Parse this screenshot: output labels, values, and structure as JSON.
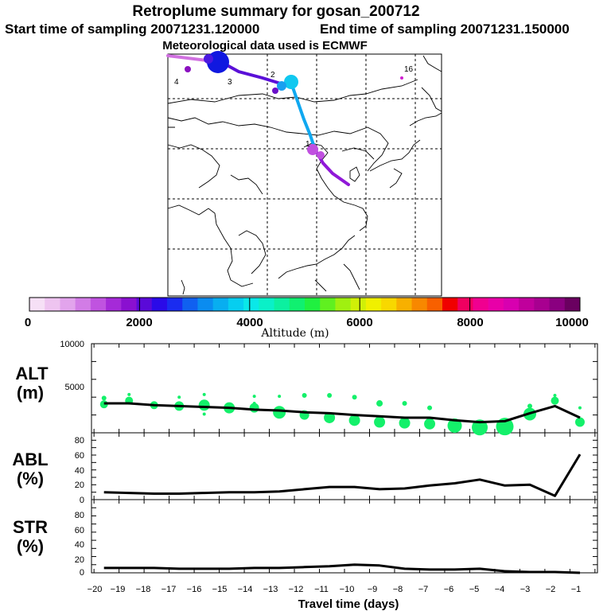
{
  "header": {
    "title": "Retroplume summary for gosan_200712",
    "start_time": "Start time of sampling 20071231.120000",
    "end_time": "End time of sampling 20071231.150000",
    "met_data": "Meteorological data used is ECMWF"
  },
  "map": {
    "day_labels": [
      {
        "id": "d4",
        "text": "4"
      },
      {
        "id": "d3",
        "text": "3"
      },
      {
        "id": "d2",
        "text": "2"
      },
      {
        "id": "d1",
        "text": "1"
      },
      {
        "id": "d16",
        "text": "16"
      }
    ]
  },
  "colorbar": {
    "tick_labels": [
      "0",
      "2000",
      "4000",
      "6000",
      "8000",
      "10000"
    ],
    "title": "Altitude (m)",
    "colors": [
      "#f6e0f6",
      "#eec4f0",
      "#e2a4ec",
      "#d27ce6",
      "#c053e0",
      "#a52ad8",
      "#8a10d0",
      "#5a0ad8",
      "#2a0ae8",
      "#1a2cf0",
      "#1060f0",
      "#0a8cf0",
      "#08aef0",
      "#06cef0",
      "#0ae8e8",
      "#0af0c8",
      "#0cf0a0",
      "#10f070",
      "#20f040",
      "#60f020",
      "#a0f010",
      "#d0f008",
      "#f0f000",
      "#f8d800",
      "#f8b000",
      "#f88800",
      "#f86000",
      "#f00000",
      "#f00060",
      "#f00090",
      "#e800a8",
      "#d800b0",
      "#c0009c",
      "#a80090",
      "#8a0080",
      "#6a0060"
    ]
  },
  "panels": {
    "alt": {
      "label_main": "ALT",
      "label_unit": "(m)",
      "y_ticks": [
        "10000",
        "5000"
      ]
    },
    "abl": {
      "label_main": "ABL",
      "label_unit": "(%)",
      "y_ticks": [
        "80",
        "60",
        "40",
        "20",
        "0"
      ]
    },
    "str": {
      "label_main": "STR",
      "label_unit": "(%)",
      "y_ticks": [
        "80",
        "60",
        "40",
        "20",
        "0"
      ]
    }
  },
  "x_axis": {
    "title": "Travel time (days)",
    "tick_labels": [
      "−20",
      "−19",
      "−18",
      "−17",
      "−16",
      "−15",
      "−14",
      "−13",
      "−12",
      "−11",
      "−10",
      "−9",
      "−8",
      "−7",
      "−6",
      "−5",
      "−4",
      "−3",
      "−2",
      "−1"
    ]
  },
  "chart_data": [
    {
      "type": "line",
      "name": "ALT",
      "xlabel": "Travel time (days)",
      "ylabel": "ALT (m)",
      "xlim": [
        -20.1,
        0.1
      ],
      "ylim": [
        0,
        10000
      ],
      "x": [
        -19.6,
        -18.6,
        -17.6,
        -16.6,
        -15.6,
        -14.6,
        -13.6,
        -12.6,
        -11.6,
        -10.6,
        -9.6,
        -8.6,
        -7.6,
        -6.6,
        -5.6,
        -4.6,
        -3.6,
        -2.6,
        -1.6,
        -0.6
      ],
      "values": [
        3300,
        3300,
        3100,
        3000,
        2900,
        2800,
        2600,
        2500,
        2300,
        2200,
        2000,
        1850,
        1700,
        1700,
        1400,
        1200,
        1300,
        2200,
        3000,
        1700
      ],
      "bubbles_green": [
        {
          "x": -19.6,
          "y": 3200,
          "r": 5
        },
        {
          "x": -19.6,
          "y": 3900,
          "r": 3
        },
        {
          "x": -18.6,
          "y": 3600,
          "r": 5
        },
        {
          "x": -17.6,
          "y": 3100,
          "r": 5
        },
        {
          "x": -16.6,
          "y": 3000,
          "r": 6
        },
        {
          "x": -15.6,
          "y": 3100,
          "r": 7
        },
        {
          "x": -14.6,
          "y": 2800,
          "r": 7
        },
        {
          "x": -13.6,
          "y": 2800,
          "r": 6
        },
        {
          "x": -12.6,
          "y": 2300,
          "r": 8
        },
        {
          "x": -11.6,
          "y": 2000,
          "r": 6
        },
        {
          "x": -10.6,
          "y": 1700,
          "r": 7
        },
        {
          "x": -9.6,
          "y": 1400,
          "r": 7
        },
        {
          "x": -8.6,
          "y": 1200,
          "r": 7
        },
        {
          "x": -7.6,
          "y": 1100,
          "r": 7
        },
        {
          "x": -6.6,
          "y": 1000,
          "r": 7
        },
        {
          "x": -5.6,
          "y": 800,
          "r": 9
        },
        {
          "x": -4.6,
          "y": 600,
          "r": 10
        },
        {
          "x": -3.6,
          "y": 700,
          "r": 11
        },
        {
          "x": -2.6,
          "y": 2100,
          "r": 8
        },
        {
          "x": -1.6,
          "y": 3600,
          "r": 5
        },
        {
          "x": -0.6,
          "y": 1200,
          "r": 6
        },
        {
          "x": -18.6,
          "y": 4300,
          "r": 2
        },
        {
          "x": -16.6,
          "y": 4000,
          "r": 2
        },
        {
          "x": -15.6,
          "y": 4300,
          "r": 2
        },
        {
          "x": -13.6,
          "y": 4100,
          "r": 2
        },
        {
          "x": -12.6,
          "y": 4100,
          "r": 2
        },
        {
          "x": -11.6,
          "y": 4200,
          "r": 3
        },
        {
          "x": -10.6,
          "y": 4200,
          "r": 3
        },
        {
          "x": -9.6,
          "y": 4000,
          "r": 3
        },
        {
          "x": -8.6,
          "y": 3300,
          "r": 4
        },
        {
          "x": -7.6,
          "y": 3300,
          "r": 3
        },
        {
          "x": -6.6,
          "y": 2800,
          "r": 3
        },
        {
          "x": -1.6,
          "y": 4200,
          "r": 2
        },
        {
          "x": -0.6,
          "y": 2800,
          "r": 2
        },
        {
          "x": -2.6,
          "y": 3000,
          "r": 3
        },
        {
          "x": -15.6,
          "y": 2100,
          "r": 2
        },
        {
          "x": -13.6,
          "y": 3300,
          "r": 2
        }
      ]
    },
    {
      "type": "line",
      "name": "ABL",
      "ylabel": "ABL (%)",
      "xlim": [
        -20.1,
        0.1
      ],
      "ylim": [
        0,
        90
      ],
      "x": [
        -19.6,
        -18.6,
        -17.6,
        -16.6,
        -15.6,
        -14.6,
        -13.6,
        -12.6,
        -11.6,
        -10.6,
        -9.6,
        -8.6,
        -7.6,
        -6.6,
        -5.6,
        -4.6,
        -3.6,
        -2.6,
        -1.6,
        -0.6
      ],
      "values": [
        10,
        9,
        8,
        8,
        9,
        10,
        10,
        11,
        14,
        17,
        17,
        14,
        15,
        19,
        22,
        27,
        19,
        20,
        5,
        61
      ]
    },
    {
      "type": "line",
      "name": "STR",
      "ylabel": "STR (%)",
      "xlim": [
        -20.1,
        0.1
      ],
      "ylim": [
        0,
        90
      ],
      "x": [
        -19.6,
        -18.6,
        -17.6,
        -16.6,
        -15.6,
        -14.6,
        -13.6,
        -12.6,
        -11.6,
        -10.6,
        -9.6,
        -8.6,
        -7.6,
        -6.6,
        -5.6,
        -4.6,
        -3.6,
        -2.6,
        -1.6,
        -0.6
      ],
      "values": [
        6,
        6,
        6,
        5,
        5,
        5,
        6,
        6,
        7,
        8,
        10,
        9,
        5,
        4,
        4,
        5,
        2,
        1,
        1,
        0
      ]
    }
  ]
}
